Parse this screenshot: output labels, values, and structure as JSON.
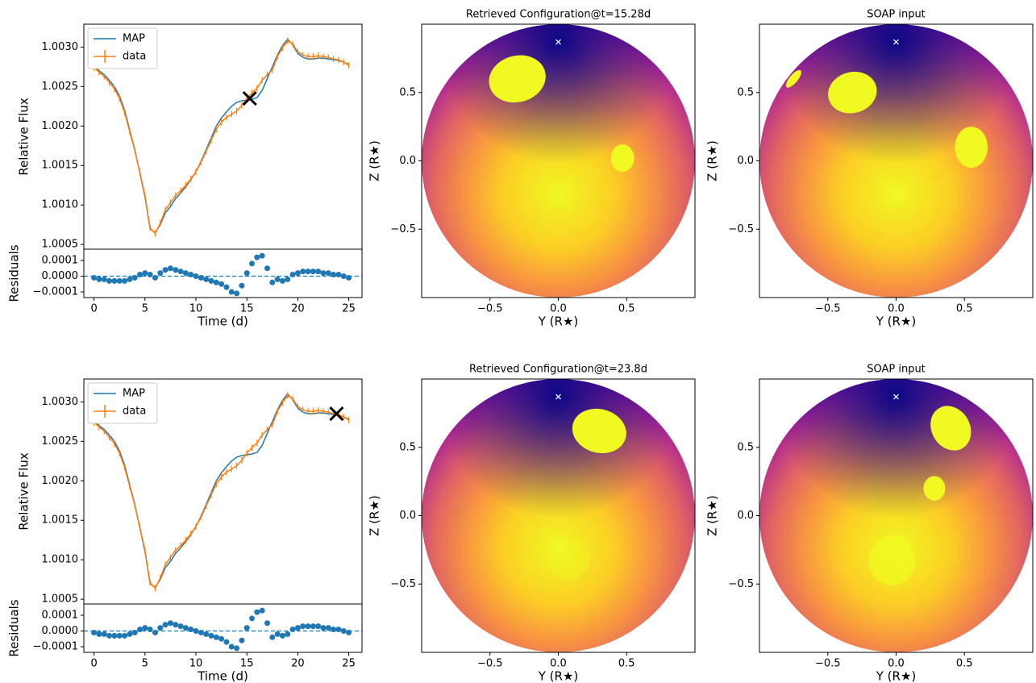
{
  "chart_data": [
    {
      "type": "line",
      "ylabel": "Relative Flux",
      "x": [
        0,
        0.5,
        1,
        1.5,
        2,
        2.5,
        3,
        3.5,
        4,
        4.5,
        5,
        5.5,
        6,
        6.5,
        7,
        7.5,
        8,
        8.5,
        9,
        9.5,
        10,
        10.5,
        11,
        11.5,
        12,
        12.5,
        13,
        13.5,
        14,
        14.5,
        15,
        15.5,
        16,
        16.5,
        17,
        17.5,
        18,
        18.5,
        19,
        19.5,
        20,
        20.5,
        21,
        21.5,
        22,
        22.5,
        23,
        23.5,
        24,
        24.5,
        25
      ],
      "series": [
        {
          "name": "MAP",
          "color": "#1f77b4",
          "values": [
            1.00275,
            1.0027,
            1.00265,
            1.00258,
            1.0025,
            1.00238,
            1.0022,
            1.00195,
            1.0017,
            1.0014,
            1.0011,
            1.0007,
            1.00065,
            1.00075,
            1.0009,
            1.00098,
            1.00108,
            1.00115,
            1.00123,
            1.00132,
            1.00142,
            1.00155,
            1.0017,
            1.00185,
            1.002,
            1.0021,
            1.00218,
            1.00225,
            1.0023,
            1.00232,
            1.00233,
            1.00234,
            1.00236,
            1.00245,
            1.0026,
            1.00275,
            1.0029,
            1.00302,
            1.0031,
            1.00303,
            1.00292,
            1.00287,
            1.00285,
            1.00285,
            1.00286,
            1.00286,
            1.00285,
            1.00284,
            1.00283,
            1.00281,
            1.00278
          ]
        },
        {
          "name": "data",
          "color": "#ff7f0e",
          "error": 4e-05,
          "values": [
            1.00274,
            1.00268,
            1.00263,
            1.00255,
            1.00247,
            1.00235,
            1.00217,
            1.00193,
            1.00169,
            1.00141,
            1.00112,
            1.00071,
            1.00064,
            1.00077,
            1.00094,
            1.00103,
            1.00112,
            1.00118,
            1.00125,
            1.00133,
            1.00142,
            1.00154,
            1.00168,
            1.00182,
            1.00196,
            1.00205,
            1.00211,
            1.00215,
            1.00219,
            1.00226,
            1.00235,
            1.00242,
            1.00248,
            1.00258,
            1.00265,
            1.00271,
            1.00288,
            1.00299,
            1.00308,
            1.00304,
            1.00294,
            1.0029,
            1.00288,
            1.00288,
            1.00289,
            1.00288,
            1.00287,
            1.00285,
            1.00284,
            1.00281,
            1.00277
          ]
        }
      ],
      "marker": {
        "x": 15.28,
        "y": 1.00235
      },
      "xlim": [
        -1,
        26.3
      ],
      "ylim": [
        1.00044,
        1.00329
      ],
      "yticks": [
        1.0005,
        {
          "value": 1.001,
          "label": "1.0010"
        },
        1.0015,
        {
          "value": 1.002,
          "label": "1.0020"
        },
        1.0025,
        {
          "value": 1.003,
          "label": "1.0030"
        }
      ]
    },
    {
      "type": "scatter",
      "ylabel": "Residuals",
      "xlabel": "Time (d)",
      "color": "#1f77b4",
      "hline": 0,
      "x": [
        0,
        0.5,
        1,
        1.5,
        2,
        2.5,
        3,
        3.5,
        4,
        4.5,
        5,
        5.5,
        6,
        6.5,
        7,
        7.5,
        8,
        8.5,
        9,
        9.5,
        10,
        10.5,
        11,
        11.5,
        12,
        12.5,
        13,
        13.5,
        14,
        14.5,
        15,
        15.5,
        16,
        16.5,
        17,
        17.5,
        18,
        18.5,
        19,
        19.5,
        20,
        20.5,
        21,
        21.5,
        22,
        22.5,
        23,
        23.5,
        24,
        24.5,
        25
      ],
      "values": [
        -1e-05,
        -2e-05,
        -2e-05,
        -3e-05,
        -3e-05,
        -3e-05,
        -3e-05,
        -2e-05,
        -1e-05,
        1e-05,
        2e-05,
        1e-05,
        -1e-05,
        2e-05,
        4e-05,
        5e-05,
        4e-05,
        3e-05,
        2e-05,
        1e-05,
        0,
        -1e-05,
        -2e-05,
        -3e-05,
        -4e-05,
        -5e-05,
        -7e-05,
        -0.0001,
        -0.00011,
        -6e-05,
        2e-05,
        8e-05,
        0.00012,
        0.00013,
        5e-05,
        -4e-05,
        -2e-05,
        -3e-05,
        -2e-05,
        1e-05,
        2e-05,
        3e-05,
        3e-05,
        3e-05,
        3e-05,
        2e-05,
        2e-05,
        1e-05,
        1e-05,
        0,
        -1e-05
      ],
      "xlim": [
        -1,
        26.3
      ],
      "ylim": [
        -0.000136,
        0.000172
      ],
      "xticks": [
        0,
        5,
        10,
        15,
        20,
        25
      ],
      "yticks": [
        {
          "value": -0.0001,
          "label": "−0.0001"
        },
        {
          "value": 0,
          "label": "0.0000"
        },
        0.0001
      ]
    },
    {
      "type": "disk",
      "title": "Retrieved Configuration@t=15.28d",
      "xlabel": "Y (R★)",
      "ylabel": "Z (R★)",
      "xlim": [
        -1,
        1
      ],
      "ylim": [
        -1,
        1
      ],
      "xticks": [
        {
          "value": -0.5,
          "label": "−0.5"
        },
        {
          "value": 0,
          "label": "0.0"
        },
        0.5
      ],
      "yticks": [
        {
          "value": -0.5,
          "label": "−0.5"
        },
        {
          "value": 0,
          "label": "0.0"
        },
        0.5
      ],
      "radius": 1,
      "pole": {
        "y": 0,
        "z": 0.87
      },
      "spot_color": "#f0f921",
      "spots": [
        {
          "y": -0.3,
          "z": 0.6,
          "ry": 0.21,
          "rz": 0.17,
          "angle": 15,
          "alpha": 1
        },
        {
          "y": 0.47,
          "z": 0.02,
          "ry": 0.085,
          "rz": 0.1,
          "angle": 0,
          "alpha": 1
        }
      ]
    },
    {
      "type": "disk",
      "title": "SOAP input",
      "xlabel": "Y (R★)",
      "ylabel": "Z (R★)",
      "xlim": [
        -1,
        1
      ],
      "ylim": [
        -1,
        1
      ],
      "xticks": [
        {
          "value": -0.5,
          "label": "−0.5"
        },
        {
          "value": 0,
          "label": "0.0"
        },
        0.5
      ],
      "yticks": [
        {
          "value": -0.5,
          "label": "−0.5"
        },
        {
          "value": 0,
          "label": "0.0"
        },
        0.5
      ],
      "radius": 1,
      "pole": {
        "y": 0,
        "z": 0.87
      },
      "spot_color": "#f0f921",
      "spots": [
        {
          "y": -0.75,
          "z": 0.6,
          "ry": 0.03,
          "rz": 0.08,
          "angle": -40,
          "alpha": 1
        },
        {
          "y": -0.32,
          "z": 0.5,
          "ry": 0.18,
          "rz": 0.15,
          "angle": 15,
          "alpha": 1
        },
        {
          "y": 0.55,
          "z": 0.1,
          "ry": 0.12,
          "rz": 0.15,
          "angle": 0,
          "alpha": 1
        }
      ]
    },
    {
      "type": "line",
      "ylabel": "Relative Flux",
      "x": [
        0,
        0.5,
        1,
        1.5,
        2,
        2.5,
        3,
        3.5,
        4,
        4.5,
        5,
        5.5,
        6,
        6.5,
        7,
        7.5,
        8,
        8.5,
        9,
        9.5,
        10,
        10.5,
        11,
        11.5,
        12,
        12.5,
        13,
        13.5,
        14,
        14.5,
        15,
        15.5,
        16,
        16.5,
        17,
        17.5,
        18,
        18.5,
        19,
        19.5,
        20,
        20.5,
        21,
        21.5,
        22,
        22.5,
        23,
        23.5,
        24,
        24.5,
        25
      ],
      "series": [
        {
          "name": "MAP",
          "color": "#1f77b4",
          "values": [
            1.00275,
            1.0027,
            1.00265,
            1.00258,
            1.0025,
            1.00238,
            1.0022,
            1.00195,
            1.0017,
            1.0014,
            1.0011,
            1.0007,
            1.00065,
            1.00075,
            1.0009,
            1.00098,
            1.00108,
            1.00115,
            1.00123,
            1.00132,
            1.00142,
            1.00155,
            1.0017,
            1.00185,
            1.002,
            1.0021,
            1.00218,
            1.00225,
            1.0023,
            1.00232,
            1.00233,
            1.00234,
            1.00236,
            1.00245,
            1.0026,
            1.00275,
            1.0029,
            1.00302,
            1.0031,
            1.00303,
            1.00292,
            1.00287,
            1.00285,
            1.00285,
            1.00286,
            1.00286,
            1.00285,
            1.00284,
            1.00283,
            1.00281,
            1.00278
          ]
        },
        {
          "name": "data",
          "color": "#ff7f0e",
          "error": 4e-05,
          "values": [
            1.00274,
            1.00268,
            1.00263,
            1.00255,
            1.00247,
            1.00235,
            1.00217,
            1.00193,
            1.00169,
            1.00141,
            1.00112,
            1.00071,
            1.00064,
            1.00077,
            1.00094,
            1.00103,
            1.00112,
            1.00118,
            1.00125,
            1.00133,
            1.00142,
            1.00154,
            1.00168,
            1.00182,
            1.00196,
            1.00205,
            1.00211,
            1.00215,
            1.00219,
            1.00226,
            1.00235,
            1.00242,
            1.00248,
            1.00258,
            1.00265,
            1.00271,
            1.00288,
            1.00299,
            1.00308,
            1.00304,
            1.00294,
            1.0029,
            1.00288,
            1.00288,
            1.00289,
            1.00288,
            1.00287,
            1.00285,
            1.00284,
            1.00281,
            1.00277
          ]
        }
      ],
      "marker": {
        "x": 23.8,
        "y": 1.00285
      },
      "xlim": [
        -1,
        26.3
      ],
      "ylim": [
        1.00044,
        1.00329
      ],
      "yticks": [
        1.0005,
        {
          "value": 1.001,
          "label": "1.0010"
        },
        1.0015,
        {
          "value": 1.002,
          "label": "1.0020"
        },
        1.0025,
        {
          "value": 1.003,
          "label": "1.0030"
        }
      ]
    },
    {
      "type": "scatter",
      "ylabel": "Residuals",
      "xlabel": "Time (d)",
      "color": "#1f77b4",
      "hline": 0,
      "x": [
        0,
        0.5,
        1,
        1.5,
        2,
        2.5,
        3,
        3.5,
        4,
        4.5,
        5,
        5.5,
        6,
        6.5,
        7,
        7.5,
        8,
        8.5,
        9,
        9.5,
        10,
        10.5,
        11,
        11.5,
        12,
        12.5,
        13,
        13.5,
        14,
        14.5,
        15,
        15.5,
        16,
        16.5,
        17,
        17.5,
        18,
        18.5,
        19,
        19.5,
        20,
        20.5,
        21,
        21.5,
        22,
        22.5,
        23,
        23.5,
        24,
        24.5,
        25
      ],
      "values": [
        -1e-05,
        -2e-05,
        -2e-05,
        -3e-05,
        -3e-05,
        -3e-05,
        -3e-05,
        -2e-05,
        -1e-05,
        1e-05,
        2e-05,
        1e-05,
        -1e-05,
        2e-05,
        4e-05,
        5e-05,
        4e-05,
        3e-05,
        2e-05,
        1e-05,
        0,
        -1e-05,
        -2e-05,
        -3e-05,
        -4e-05,
        -5e-05,
        -7e-05,
        -0.0001,
        -0.00011,
        -6e-05,
        2e-05,
        8e-05,
        0.00012,
        0.00013,
        5e-05,
        -4e-05,
        -2e-05,
        -3e-05,
        -2e-05,
        1e-05,
        2e-05,
        3e-05,
        3e-05,
        3e-05,
        3e-05,
        2e-05,
        2e-05,
        1e-05,
        1e-05,
        0,
        -1e-05
      ],
      "xlim": [
        -1,
        26.3
      ],
      "ylim": [
        -0.000136,
        0.000172
      ],
      "xticks": [
        0,
        5,
        10,
        15,
        20,
        25
      ],
      "yticks": [
        {
          "value": -0.0001,
          "label": "−0.0001"
        },
        {
          "value": 0,
          "label": "0.0000"
        },
        0.0001
      ]
    },
    {
      "type": "disk",
      "title": "Retrieved Configuration@t=23.8d",
      "xlabel": "Y (R★)",
      "ylabel": "Z (R★)",
      "xlim": [
        -1,
        1
      ],
      "ylim": [
        -1,
        1
      ],
      "xticks": [
        {
          "value": -0.5,
          "label": "−0.5"
        },
        {
          "value": 0,
          "label": "0.0"
        },
        0.5
      ],
      "yticks": [
        {
          "value": -0.5,
          "label": "−0.5"
        },
        {
          "value": 0,
          "label": "0.0"
        },
        0.5
      ],
      "radius": 1,
      "pole": {
        "y": 0,
        "z": 0.87
      },
      "spot_color": "#f0f921",
      "spots": [
        {
          "y": 0.3,
          "z": 0.62,
          "ry": 0.2,
          "rz": 0.16,
          "angle": -15,
          "alpha": 1
        },
        {
          "y": 0.08,
          "z": -0.32,
          "ry": 0.15,
          "rz": 0.15,
          "angle": 0,
          "alpha": 0.35
        }
      ]
    },
    {
      "type": "disk",
      "title": "SOAP input",
      "xlabel": "Y (R★)",
      "ylabel": "Z (R★)",
      "xlim": [
        -1,
        1
      ],
      "ylim": [
        -1,
        1
      ],
      "xticks": [
        {
          "value": -0.5,
          "label": "−0.5"
        },
        {
          "value": 0,
          "label": "0.0"
        },
        0.5
      ],
      "yticks": [
        {
          "value": -0.5,
          "label": "−0.5"
        },
        {
          "value": 0,
          "label": "0.0"
        },
        0.5
      ],
      "radius": 1,
      "pole": {
        "y": 0,
        "z": 0.87
      },
      "spot_color": "#f0f921",
      "spots": [
        {
          "y": 0.4,
          "z": 0.64,
          "ry": 0.14,
          "rz": 0.17,
          "angle": 30,
          "alpha": 1
        },
        {
          "y": 0.28,
          "z": 0.2,
          "ry": 0.08,
          "rz": 0.09,
          "angle": 0,
          "alpha": 1
        },
        {
          "y": -0.03,
          "z": -0.33,
          "ry": 0.17,
          "rz": 0.18,
          "angle": 0,
          "alpha": 0.8
        }
      ]
    }
  ]
}
